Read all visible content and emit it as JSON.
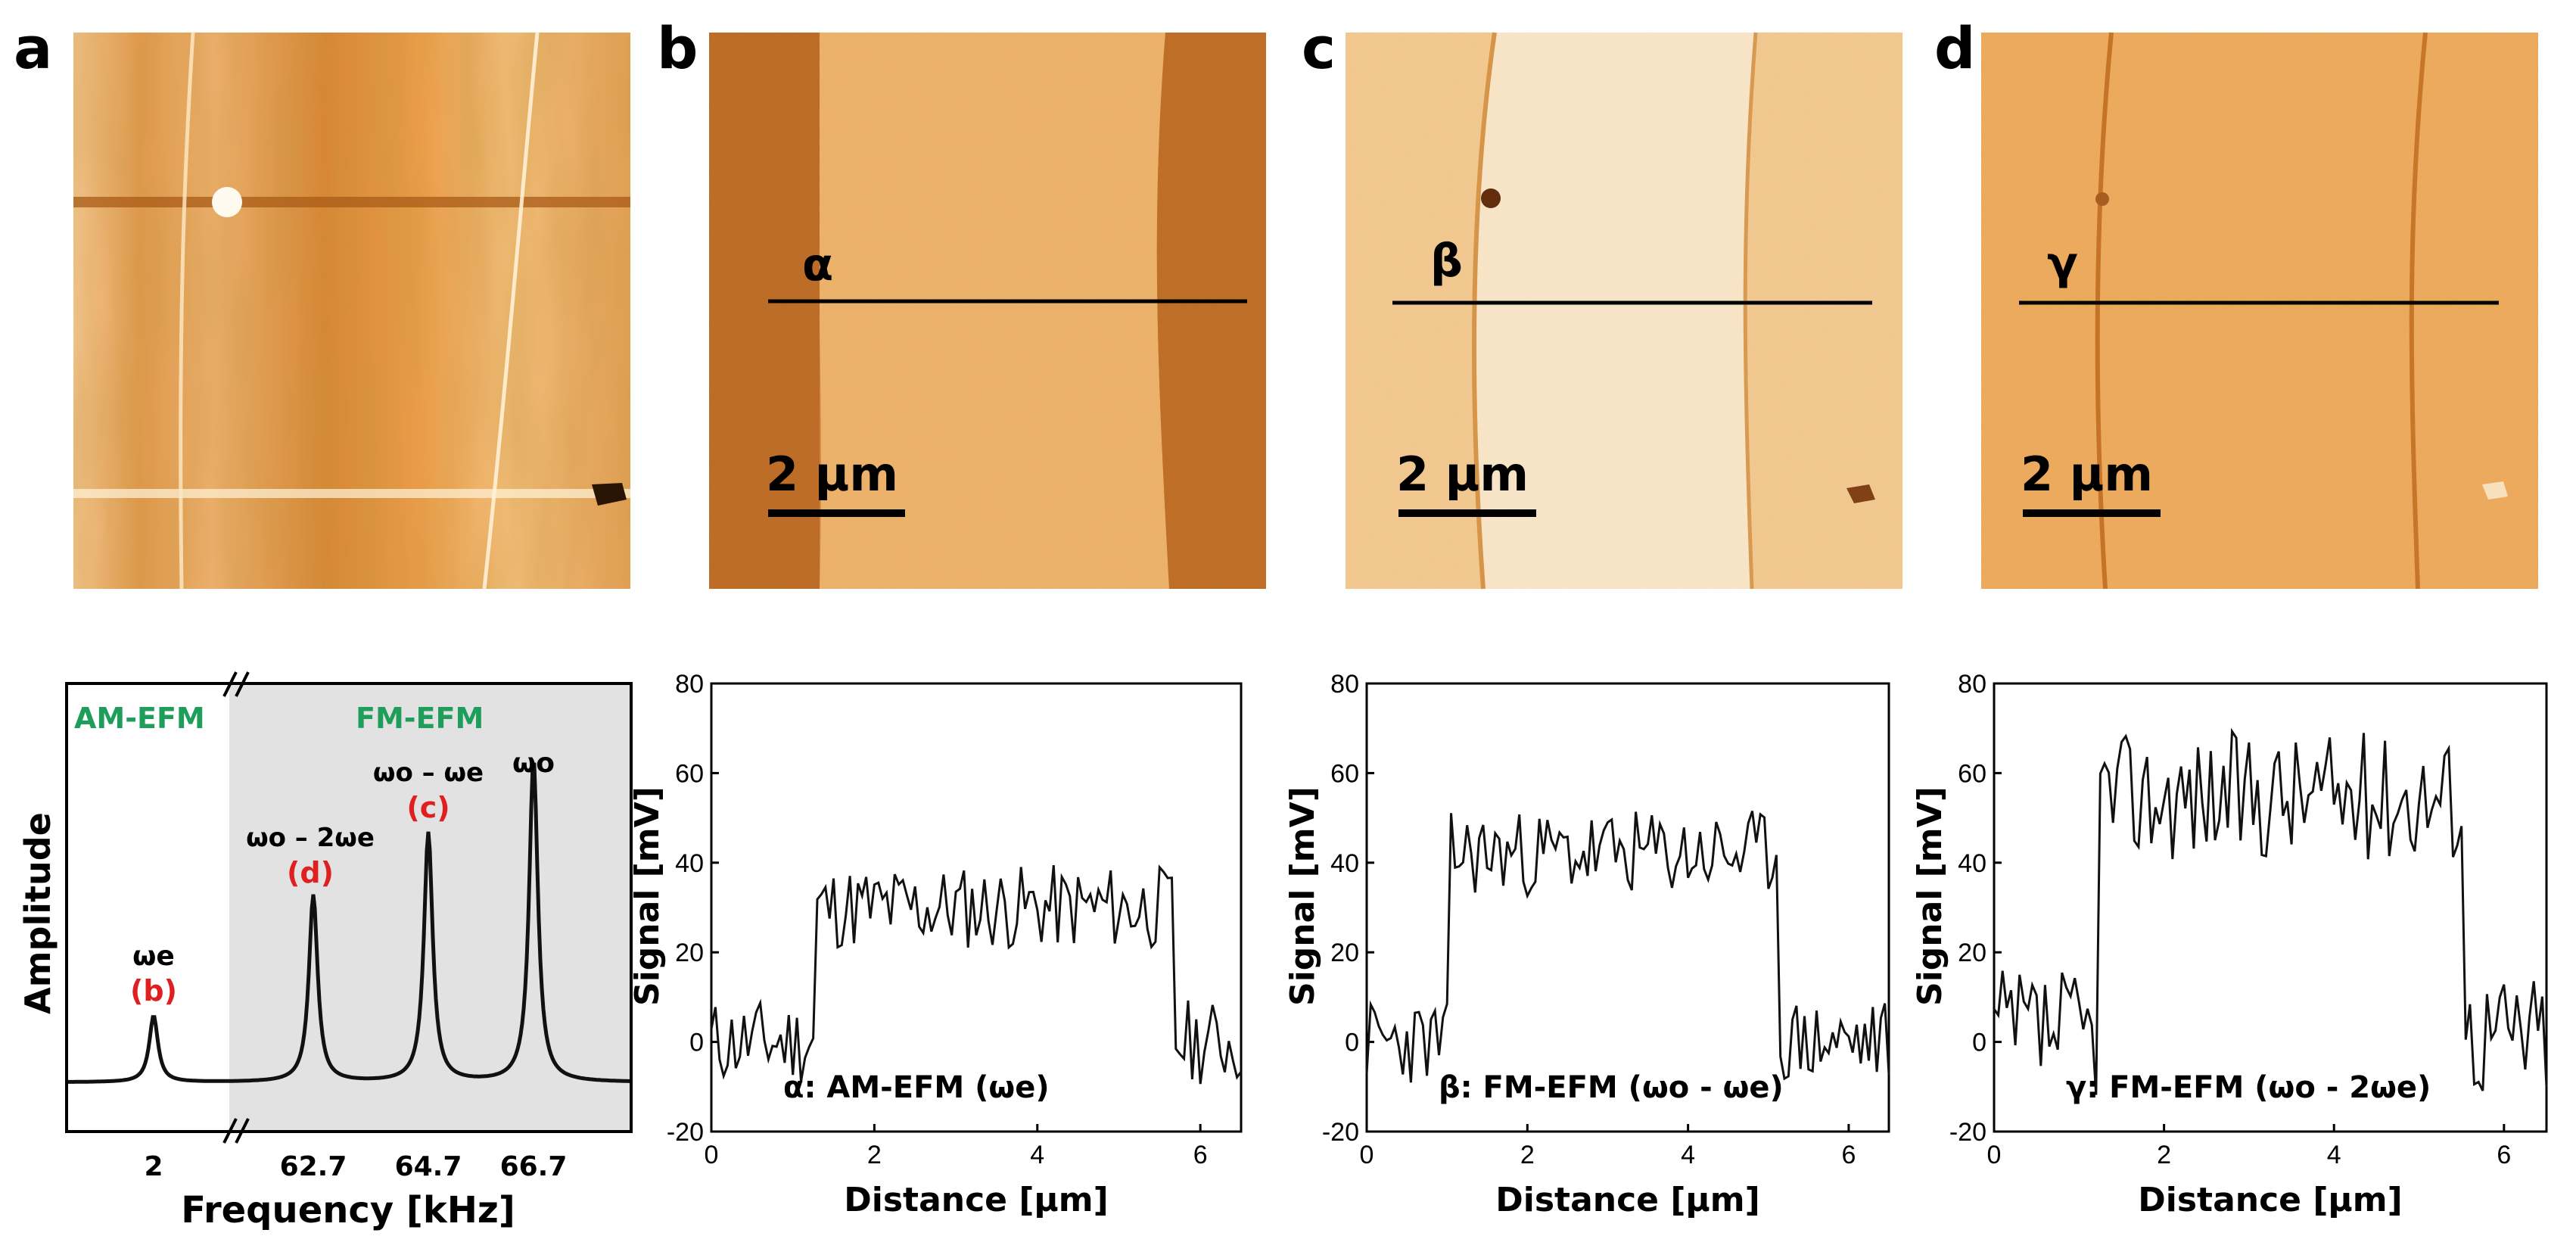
{
  "figure": {
    "panel_labels": [
      "a",
      "b",
      "c",
      "d"
    ],
    "scale_bar_text": "2 µm",
    "profile_markers": [
      "α",
      "β",
      "γ"
    ],
    "image_colors": {
      "light": "#fbecd3",
      "mid": "#f2b96f",
      "dark": "#d17a27",
      "deep": "#b25a14"
    }
  },
  "spectrum": {
    "am_region_label": "AM-EFM",
    "fm_region_label": "FM-EFM",
    "region_label_color": "#1e9e5a",
    "ylabel": "Amplitude",
    "xlabel": "Frequency [kHz]",
    "x_ticks": [
      "2",
      "62.7",
      "64.7",
      "66.7"
    ],
    "peaks": [
      {
        "label": "ωe",
        "panel_ref": "(b)",
        "relative_height": 0.17
      },
      {
        "label": "ωo – 2ωe",
        "panel_ref": "(d)",
        "relative_height": 0.48
      },
      {
        "label": "ωo – ωe",
        "panel_ref": "(c)",
        "relative_height": 0.64
      },
      {
        "label": "ωo",
        "panel_ref": "",
        "relative_height": 0.83
      }
    ],
    "ref_color": "#e02020"
  },
  "chart_data": [
    {
      "type": "line",
      "name": "alpha",
      "legend": "α: AM-EFM (ωe)",
      "xlabel": "Distance [µm]",
      "ylabel": "Signal [mV]",
      "xlim": [
        0,
        6.5
      ],
      "ylim": [
        -20,
        80
      ],
      "x_ticks": [
        0,
        2,
        4,
        6
      ],
      "y_ticks": [
        -20,
        0,
        20,
        40,
        60,
        80
      ],
      "low_level": 0,
      "high_level": 30,
      "noise": 6,
      "step_up": 1.25,
      "step_down": 5.7,
      "seed": 11
    },
    {
      "type": "line",
      "name": "beta",
      "legend": "β: FM-EFM (ωo - ωe)",
      "xlabel": "Distance [µm]",
      "ylabel": "Signal [mV]",
      "xlim": [
        0,
        6.5
      ],
      "ylim": [
        -20,
        80
      ],
      "x_ticks": [
        0,
        2,
        4,
        6
      ],
      "y_ticks": [
        -20,
        0,
        20,
        40,
        60,
        80
      ],
      "low_level": 0,
      "high_level": 42,
      "noise": 6,
      "step_up": 1.0,
      "step_down": 5.15,
      "seed": 23
    },
    {
      "type": "line",
      "name": "gamma",
      "legend": "γ: FM-EFM (ωo - 2ωe)",
      "xlabel": "Distance [µm]",
      "ylabel": "Signal [mV]",
      "xlim": [
        0,
        6.5
      ],
      "ylim": [
        -20,
        80
      ],
      "x_ticks": [
        0,
        2,
        4,
        6
      ],
      "y_ticks": [
        -20,
        0,
        20,
        40,
        60,
        80
      ],
      "low_level": 2,
      "high_level": 55,
      "noise": 9,
      "step_up": 1.2,
      "step_down": 5.55,
      "seed": 37
    }
  ]
}
